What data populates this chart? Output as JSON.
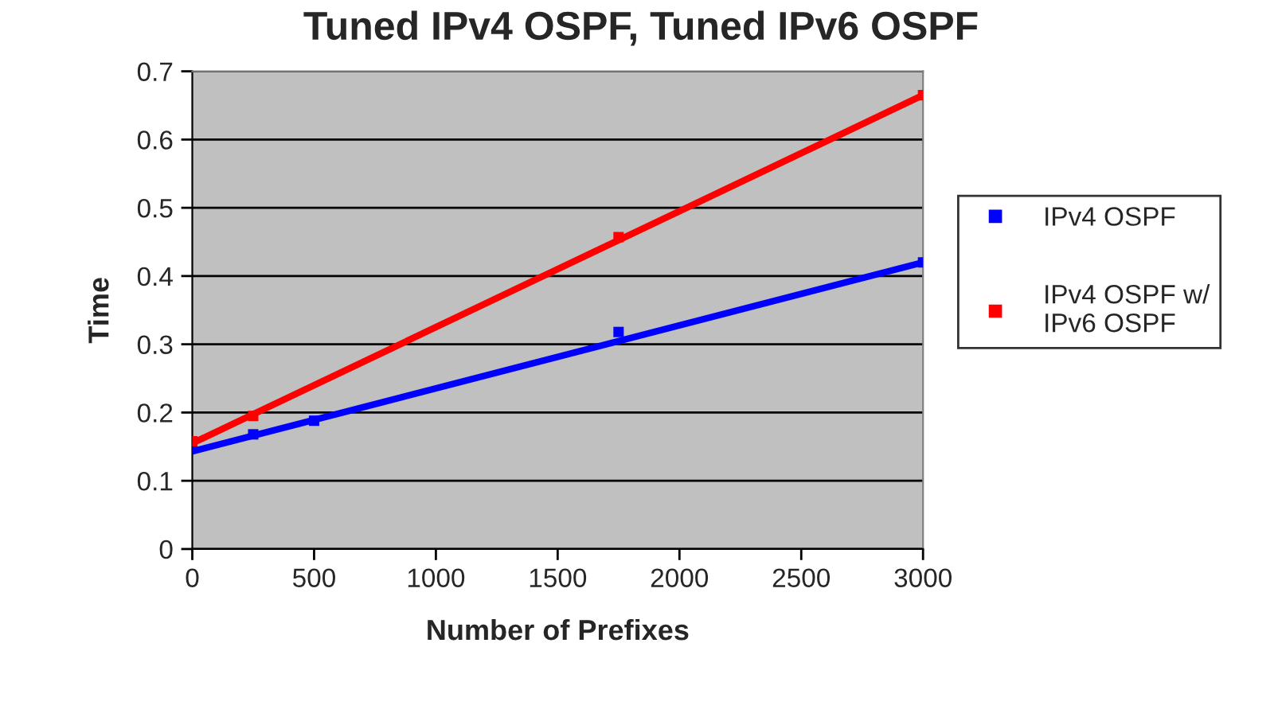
{
  "chart_data": {
    "type": "scatter",
    "title": "Tuned IPv4 OSPF, Tuned IPv6 OSPF",
    "xlabel": "Number of Prefixes",
    "ylabel": "Time",
    "series": [
      {
        "name": "IPv4 OSPF",
        "color": "#0000ff",
        "x": [
          0,
          250,
          500,
          1750,
          3000
        ],
        "values": [
          0.148,
          0.168,
          0.188,
          0.318,
          0.42
        ],
        "marker": "square"
      },
      {
        "name": "IPv4 OSPF w/\nIPv6 OSPF",
        "color": "#ff0000",
        "x": [
          0,
          250,
          1750,
          3000
        ],
        "values": [
          0.158,
          0.195,
          0.457,
          0.665
        ],
        "marker": "square"
      },
      {
        "type": "line",
        "color": "#0000ff",
        "x": [
          0,
          3000
        ],
        "values": [
          0.143,
          0.42
        ],
        "marker": "none"
      },
      {
        "type": "line",
        "color": "#ff0000",
        "x": [
          0,
          3000
        ],
        "values": [
          0.155,
          0.665
        ],
        "marker": "none"
      }
    ],
    "xlim": [
      0,
      3000
    ],
    "xticks": [
      0,
      500,
      1000,
      1500,
      2000,
      2500,
      3000
    ],
    "ylim": [
      0,
      0.7
    ],
    "yticks": [
      0,
      0.1,
      0.2,
      0.3,
      0.4,
      0.5,
      0.6,
      0.7
    ],
    "grid": "y",
    "legend": "right"
  }
}
